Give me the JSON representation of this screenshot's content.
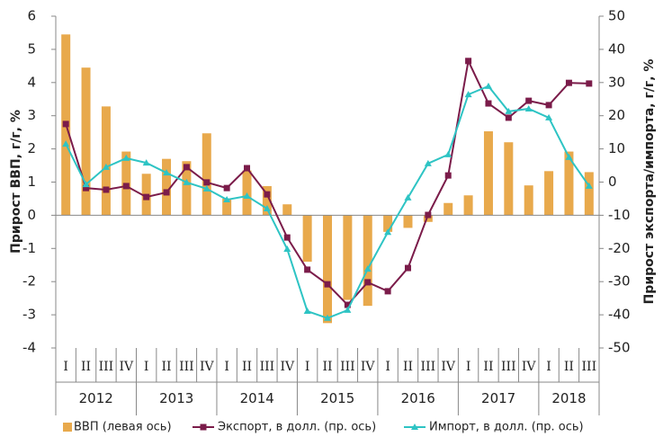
{
  "chart_data": {
    "type": "bar_line_dual",
    "categories": [
      "I",
      "II",
      "III",
      "IV",
      "I",
      "II",
      "III",
      "IV",
      "I",
      "II",
      "III",
      "IV",
      "I",
      "II",
      "III",
      "IV",
      "I",
      "II",
      "III",
      "IV",
      "I",
      "II",
      "III",
      "IV",
      "I",
      "II",
      "III"
    ],
    "years": [
      "2012",
      "2013",
      "2014",
      "2015",
      "2016",
      "2017",
      "2018"
    ],
    "ylabel": "Прирост ВВП, г/г, %",
    "y2label": "Прирост экспорта/импорта, г/г, %",
    "ylim": [
      -4,
      6
    ],
    "yticks": [
      -4,
      -3,
      -2,
      -1,
      0,
      1,
      2,
      3,
      4,
      5,
      6
    ],
    "y2lim": [
      -50,
      50
    ],
    "y2ticks": [
      -50,
      -40,
      -30,
      -20,
      -10,
      0,
      10,
      20,
      30,
      40,
      50
    ],
    "series": [
      {
        "name": "ВВП (левая ось)",
        "type": "bar",
        "color": "#e8a94c",
        "values": [
          5.45,
          4.45,
          3.28,
          1.92,
          1.25,
          1.7,
          1.63,
          2.47,
          0.5,
          1.35,
          0.88,
          0.33,
          -1.4,
          -3.25,
          -2.55,
          -2.73,
          -0.5,
          -0.38,
          -0.2,
          0.37,
          0.6,
          2.53,
          2.2,
          0.9,
          1.33,
          1.92,
          1.3
        ]
      },
      {
        "name": "Экспорт, в долл. (пр. ось)",
        "type": "line",
        "axis": "y2",
        "marker": "square",
        "color": "#7b1c4a",
        "values": [
          17.5,
          -1.8,
          -2.3,
          -1.2,
          -4.5,
          -3.1,
          4.5,
          -0.1,
          -1.8,
          4.2,
          -3.7,
          -16.7,
          -26.4,
          -30.8,
          -37,
          -30.2,
          -32.9,
          -25.9,
          -9.9,
          2,
          36.5,
          23.7,
          19.4,
          24.5,
          23.2,
          29.9,
          29.7
        ]
      },
      {
        "name": "Импорт, в долл. (пр. ось)",
        "type": "line",
        "axis": "y2",
        "marker": "triangle",
        "color": "#2ec4c4",
        "values": [
          11.5,
          -0.7,
          4.5,
          7.2,
          5.8,
          2.8,
          -0.1,
          -2,
          -5.3,
          -4.2,
          -8,
          -20.2,
          -38.9,
          -41,
          -38.6,
          -26.2,
          -15.1,
          -4.7,
          5.6,
          8.3,
          26.4,
          28.9,
          21.3,
          22.1,
          19.4,
          7.5,
          -1.2
        ]
      }
    ]
  }
}
